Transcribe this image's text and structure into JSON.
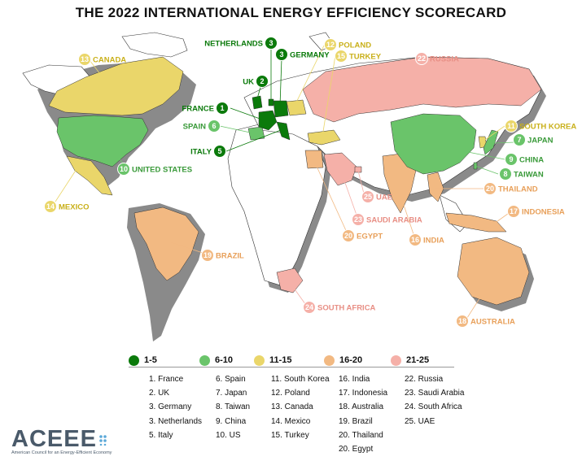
{
  "title": "THE 2022 INTERNATIONAL ENERGY EFFICIENCY SCORECARD",
  "colors": {
    "tier1": "#0b7a0b",
    "tier2": "#6ac46a",
    "tier3": "#ead66a",
    "tier4": "#f2b982",
    "tier5": "#f5b0a8",
    "land": "#ffffff",
    "shadow": "#8a8a8a"
  },
  "legend": [
    {
      "label": "1-5"
    },
    {
      "label": "6-10"
    },
    {
      "label": "11-15"
    },
    {
      "label": "16-20"
    },
    {
      "label": "21-25"
    }
  ],
  "columns": [
    [
      "1. France",
      "2. UK",
      "3. Germany",
      "3. Netherlands",
      "5. Italy"
    ],
    [
      "6. Spain",
      "7. Japan",
      "8. Taiwan",
      "9. China",
      "10. US"
    ],
    [
      "11. South Korea",
      "12. Poland",
      "13. Canada",
      "14. Mexico",
      "15. Turkey"
    ],
    [
      "16. India",
      "17. Indonesia",
      "18. Australia",
      "19. Brazil",
      "20. Thailand",
      "20. Egypt"
    ],
    [
      "22. Russia",
      "23. Saudi Arabia",
      "24. South Africa",
      "25. UAE"
    ]
  ],
  "markers": [
    {
      "rank": "1",
      "name": "FRANCE"
    },
    {
      "rank": "2",
      "name": "UK"
    },
    {
      "rank": "3",
      "name": "NETHERLANDS"
    },
    {
      "rank": "3",
      "name": "GERMANY"
    },
    {
      "rank": "5",
      "name": "ITALY"
    },
    {
      "rank": "6",
      "name": "SPAIN"
    },
    {
      "rank": "7",
      "name": "JAPAN"
    },
    {
      "rank": "8",
      "name": "TAIWAN"
    },
    {
      "rank": "9",
      "name": "CHINA"
    },
    {
      "rank": "10",
      "name": "UNITED STATES"
    },
    {
      "rank": "11",
      "name": "SOUTH KOREA"
    },
    {
      "rank": "12",
      "name": "POLAND"
    },
    {
      "rank": "13",
      "name": "CANADA"
    },
    {
      "rank": "14",
      "name": "MEXICO"
    },
    {
      "rank": "15",
      "name": "TURKEY"
    },
    {
      "rank": "16",
      "name": "INDIA"
    },
    {
      "rank": "17",
      "name": "INDONESIA"
    },
    {
      "rank": "18",
      "name": "AUSTRALIA"
    },
    {
      "rank": "19",
      "name": "BRAZIL"
    },
    {
      "rank": "20",
      "name": "THAILAND"
    },
    {
      "rank": "20",
      "name": "EGYPT"
    },
    {
      "rank": "22",
      "name": "RUSSIA"
    },
    {
      "rank": "23",
      "name": "SAUDI ARABIA"
    },
    {
      "rank": "24",
      "name": "SOUTH AFRICA"
    },
    {
      "rank": "25",
      "name": "UAE"
    }
  ],
  "logo": {
    "name": "ACEEE",
    "tagline": "American Council for an Energy-Efficient Economy"
  }
}
